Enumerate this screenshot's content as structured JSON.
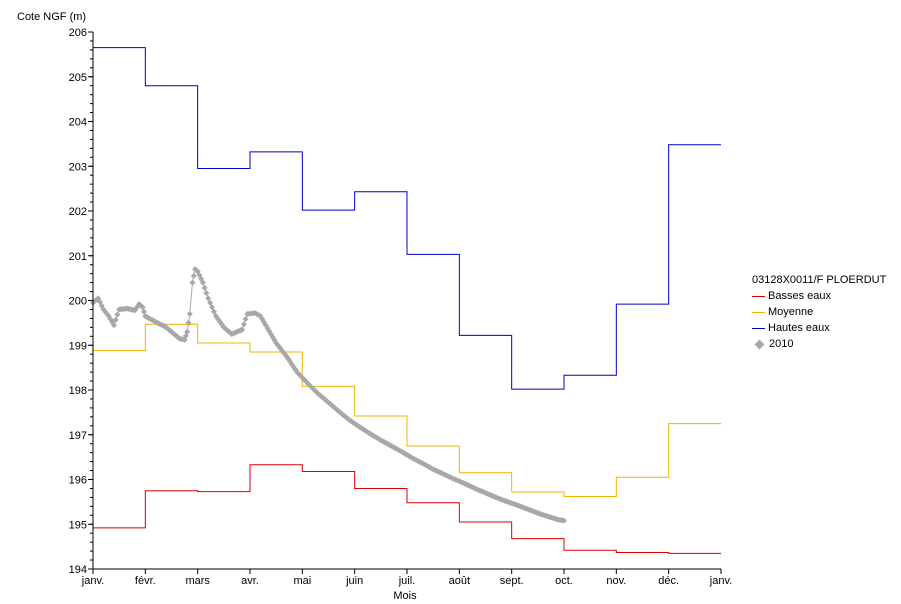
{
  "chart_data": {
    "type": "line",
    "ylabel": "Cote NGF (m)",
    "xlabel": "Mois",
    "ylim": [
      194,
      206
    ],
    "yticks": [
      194,
      195,
      196,
      197,
      198,
      199,
      200,
      201,
      202,
      203,
      204,
      205,
      206
    ],
    "xticks": [
      "janv.",
      "févr.",
      "mars",
      "avr.",
      "mai",
      "juin",
      "juil.",
      "août",
      "sept.",
      "oct.",
      "nov.",
      "déc.",
      "janv."
    ],
    "legend_title": "03128X0011/F PLOERDUT",
    "legend_position": "right",
    "series": [
      {
        "name": "Basses eaux",
        "style": "step",
        "color": "#dd0000",
        "values": [
          194.92,
          195.75,
          195.73,
          196.33,
          196.18,
          195.8,
          195.48,
          195.05,
          194.68,
          194.42,
          194.37,
          194.35
        ]
      },
      {
        "name": "Moyenne",
        "style": "step",
        "color": "#f0b400",
        "values": [
          198.88,
          199.47,
          199.05,
          198.85,
          198.08,
          197.42,
          196.75,
          196.15,
          195.72,
          195.62,
          196.05,
          197.25
        ]
      },
      {
        "name": "Hautes eaux",
        "style": "step",
        "color": "#0000cc",
        "values": [
          205.65,
          204.8,
          202.95,
          203.32,
          202.02,
          202.43,
          201.03,
          199.22,
          198.02,
          198.33,
          199.92,
          203.48
        ]
      },
      {
        "name": "2010",
        "style": "points",
        "color": "#a8a8a8",
        "points": [
          [
            0.0,
            199.95
          ],
          [
            0.1,
            200.05
          ],
          [
            0.2,
            199.8
          ],
          [
            0.3,
            199.65
          ],
          [
            0.4,
            199.45
          ],
          [
            0.5,
            199.8
          ],
          [
            0.65,
            199.82
          ],
          [
            0.8,
            199.78
          ],
          [
            0.88,
            199.92
          ],
          [
            0.95,
            199.85
          ],
          [
            1.0,
            199.65
          ],
          [
            1.2,
            199.52
          ],
          [
            1.4,
            199.4
          ],
          [
            1.55,
            199.25
          ],
          [
            1.65,
            199.15
          ],
          [
            1.75,
            199.12
          ],
          [
            1.8,
            199.3
          ],
          [
            1.85,
            199.7
          ],
          [
            1.9,
            200.4
          ],
          [
            1.95,
            200.7
          ],
          [
            2.0,
            200.65
          ],
          [
            2.1,
            200.4
          ],
          [
            2.2,
            200.05
          ],
          [
            2.35,
            199.65
          ],
          [
            2.5,
            199.4
          ],
          [
            2.65,
            199.25
          ],
          [
            2.75,
            199.3
          ],
          [
            2.85,
            199.35
          ],
          [
            2.95,
            199.7
          ],
          [
            3.1,
            199.72
          ],
          [
            3.2,
            199.65
          ],
          [
            3.3,
            199.45
          ],
          [
            3.5,
            199.05
          ],
          [
            3.7,
            198.75
          ],
          [
            3.9,
            198.4
          ],
          [
            4.1,
            198.15
          ],
          [
            4.3,
            197.92
          ],
          [
            4.5,
            197.72
          ],
          [
            4.7,
            197.52
          ],
          [
            4.9,
            197.33
          ],
          [
            5.1,
            197.17
          ],
          [
            5.3,
            197.02
          ],
          [
            5.5,
            196.88
          ],
          [
            5.7,
            196.75
          ],
          [
            5.9,
            196.62
          ],
          [
            6.1,
            196.48
          ],
          [
            6.3,
            196.36
          ],
          [
            6.5,
            196.23
          ],
          [
            6.7,
            196.12
          ],
          [
            6.9,
            196.01
          ],
          [
            7.1,
            195.91
          ],
          [
            7.3,
            195.8
          ],
          [
            7.5,
            195.7
          ],
          [
            7.7,
            195.6
          ],
          [
            7.9,
            195.51
          ],
          [
            8.1,
            195.43
          ],
          [
            8.3,
            195.34
          ],
          [
            8.5,
            195.25
          ],
          [
            8.7,
            195.17
          ],
          [
            8.9,
            195.1
          ],
          [
            9.0,
            195.08
          ]
        ]
      }
    ]
  }
}
